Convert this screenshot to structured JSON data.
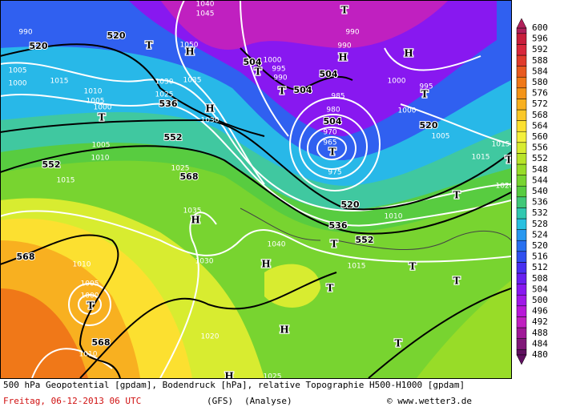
{
  "map": {
    "geopotential_labels": [
      "520",
      "520",
      "504",
      "504",
      "504",
      "504",
      "536",
      "552",
      "552",
      "568",
      "520",
      "520",
      "536",
      "552",
      "568",
      "568"
    ],
    "pressure_labels": [
      "1040",
      "1045",
      "1050",
      "1035",
      "1030",
      "1025",
      "1030",
      "1010",
      "1005",
      "1000",
      "1005",
      "1010",
      "1015",
      "1015",
      "1005",
      "1000",
      "990",
      "1000",
      "995",
      "990",
      "985",
      "980",
      "975",
      "970",
      "965",
      "975",
      "1000",
      "995",
      "1000",
      "1005",
      "1015",
      "1015",
      "1020",
      "1010",
      "1040",
      "1035",
      "1030",
      "1015",
      "1010",
      "1005",
      "1000",
      "1010",
      "1020",
      "1025",
      "1025",
      "990",
      "990"
    ],
    "markers": [
      "T",
      "T",
      "H",
      "T",
      "H",
      "H",
      "H",
      "T",
      "T",
      "T",
      "T",
      "T",
      "T",
      "H",
      "H",
      "T",
      "T",
      "T",
      "T",
      "H",
      "T",
      "T",
      "H"
    ]
  },
  "legend": {
    "values": [
      480,
      484,
      488,
      492,
      496,
      500,
      504,
      508,
      512,
      516,
      520,
      524,
      528,
      532,
      536,
      540,
      544,
      548,
      552,
      556,
      560,
      564,
      568,
      572,
      576,
      580,
      584,
      588,
      592,
      596,
      600
    ],
    "colors": [
      "#601060",
      "#801878",
      "#a01898",
      "#c020c0",
      "#b818d8",
      "#a018e8",
      "#8818f0",
      "#6820f0",
      "#4830f0",
      "#3050f0",
      "#2870f0",
      "#2898f0",
      "#28c0e0",
      "#30c8b0",
      "#40c878",
      "#58cc40",
      "#78d430",
      "#98dc28",
      "#b8e428",
      "#d8ec30",
      "#f4f03c",
      "#fce030",
      "#fac828",
      "#f8b020",
      "#f49418",
      "#f07818",
      "#e85a20",
      "#e03c2c",
      "#d8283c",
      "#c81e3c",
      "#b0205a"
    ]
  },
  "footer": {
    "description": "500 hPa Geopotential [gpdam], Bodendruck [hPa], relative Topographie H500-H1000 [gpdam]",
    "date": "Freitag, 06-12-2013  06 UTC",
    "model": "(GFS)",
    "run": "(Analyse)",
    "credit": "© www.wetter3.de"
  }
}
